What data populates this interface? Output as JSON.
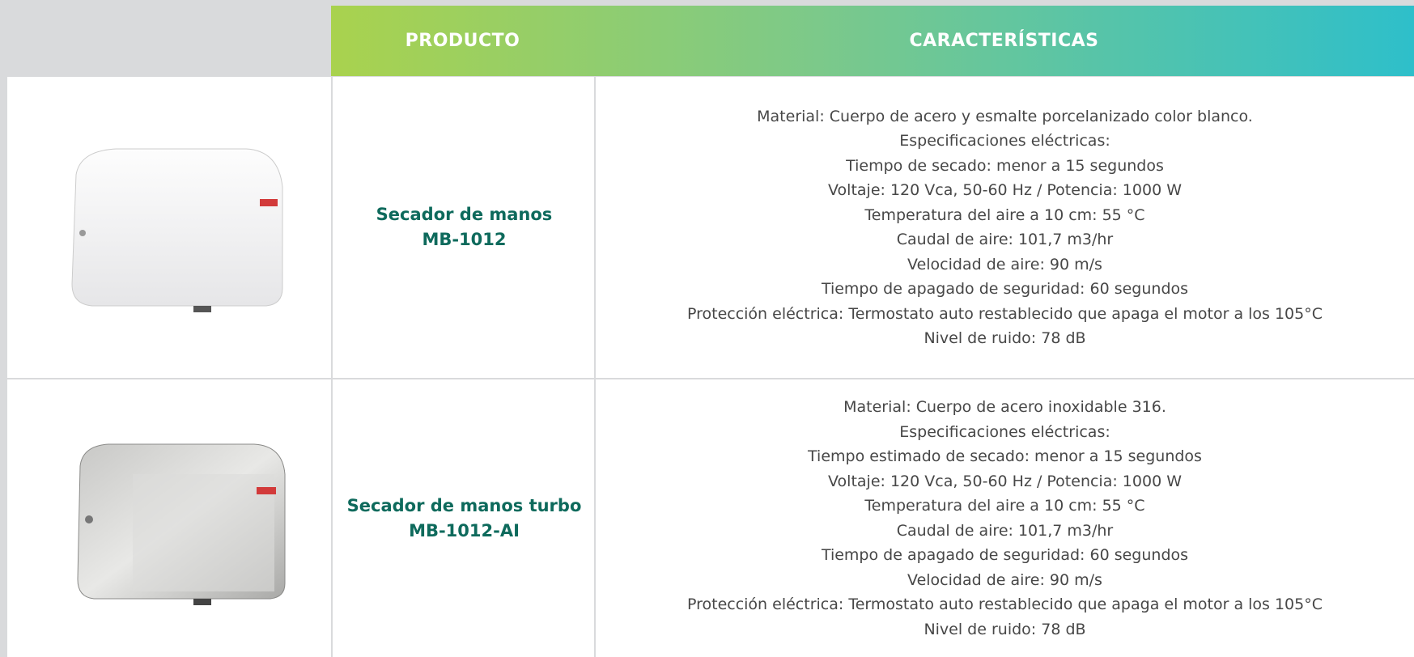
{
  "header": {
    "columns": [
      "PRODUCTO",
      "CARACTERÍSTICAS"
    ]
  },
  "table": {
    "rows": [
      {
        "product": [
          "Secador de manos",
          "MB-1012"
        ],
        "features": [
          "Material: Cuerpo de acero y esmalte porcelanizado color blanco.",
          "Especificaciones eléctricas:",
          "Tiempo de secado: menor a 15 segundos",
          "Voltaje: 120 Vca, 50-60 Hz / Potencia: 1000 W",
          "Temperatura del aire a 10 cm: 55 °C",
          "Caudal de aire: 101,7 m3/hr",
          "Velocidad de aire: 90 m/s",
          "Tiempo de apagado de seguridad: 60 segundos",
          "Protección eléctrica: Termostato auto restablecido que apaga el motor a los 105°C",
          "Nivel de ruido: 78 dB"
        ]
      },
      {
        "product": [
          "Secador de manos turbo",
          "MB-1012-AI"
        ],
        "features": [
          "Material: Cuerpo de acero inoxidable 316.",
          "Especificaciones eléctricas:",
          "Tiempo estimado de secado: menor a 15 segundos",
          "Voltaje: 120 Vca, 50-60 Hz / Potencia: 1000 W",
          "Temperatura del aire a 10 cm: 55 °C",
          "Caudal de aire: 101,7 m3/hr",
          "Tiempo de apagado de seguridad: 60 segundos",
          "Velocidad de aire: 90 m/s",
          "Protección eléctrica: Termostato auto restablecido que apaga el motor a los 105°C",
          "Nivel de ruido: 78 dB"
        ]
      }
    ]
  }
}
